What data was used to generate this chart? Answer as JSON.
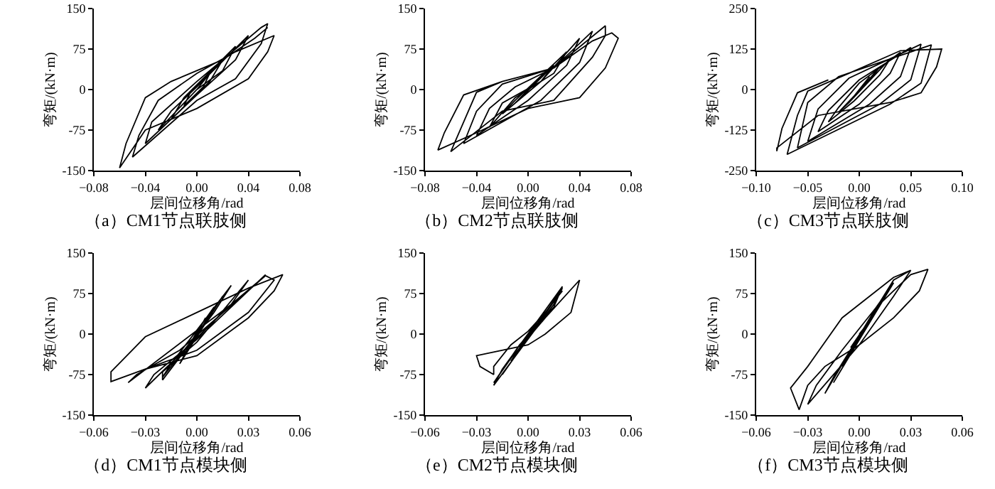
{
  "chart_data": [
    {
      "type": "line",
      "title": "（a）CM1节点联肢侧",
      "xlabel": "层间位移角/rad",
      "ylabel": "弯矩/(kN·m)",
      "color": "#000000",
      "xlim": [
        -0.08,
        0.08
      ],
      "ylim": [
        -150,
        150
      ],
      "xticks": [
        {
          "value": -0.08,
          "label": "−0.08"
        },
        {
          "value": -0.04,
          "label": "−0.04"
        },
        {
          "value": 0,
          "label": "0.00"
        },
        {
          "value": 0.04,
          "label": "0.04"
        },
        {
          "value": 0.08,
          "label": "0.08"
        }
      ],
      "yticks": [
        -150,
        -75,
        0,
        75,
        150
      ],
      "x": [
        0,
        0.01,
        0.005,
        -0.01,
        -0.005,
        0.02,
        0.01,
        -0.02,
        -0.01,
        0.03,
        0.02,
        0,
        -0.03,
        -0.02,
        0,
        0.04,
        0.03,
        0,
        -0.04,
        -0.035,
        0,
        0.05,
        0.055,
        0.05,
        0.03,
        0,
        -0.05,
        -0.045,
        -0.03,
        0,
        0.03,
        0.06,
        0.055,
        0.04,
        0,
        -0.04,
        -0.06,
        -0.055,
        -0.04,
        -0.02,
        0.02,
        0.045,
        0.055
      ],
      "values": [
        0,
        30,
        5,
        -30,
        -5,
        55,
        15,
        -55,
        -15,
        80,
        35,
        0,
        -75,
        -40,
        5,
        100,
        55,
        -10,
        -100,
        -60,
        15,
        115,
        122,
        85,
        20,
        -20,
        -125,
        -85,
        -20,
        30,
        70,
        100,
        70,
        20,
        -35,
        -75,
        -145,
        -100,
        -15,
        15,
        55,
        95,
        115
      ]
    },
    {
      "type": "line",
      "title": "（b）CM2节点联肢侧",
      "xlabel": "层间位移角/rad",
      "ylabel": "弯矩/(kN·m)",
      "color": "#000000",
      "xlim": [
        -0.08,
        0.08
      ],
      "ylim": [
        -150,
        150
      ],
      "xticks": [
        {
          "value": -0.08,
          "label": "−0.08"
        },
        {
          "value": -0.04,
          "label": "−0.04"
        },
        {
          "value": 0,
          "label": "0.00"
        },
        {
          "value": 0.04,
          "label": "0.04"
        },
        {
          "value": 0.08,
          "label": "0.08"
        }
      ],
      "yticks": [
        -150,
        -75,
        0,
        75,
        150
      ],
      "x": [
        0,
        0.01,
        -0.01,
        0.02,
        0.01,
        -0.02,
        -0.01,
        0.03,
        0.02,
        -0.01,
        -0.03,
        -0.02,
        0.01,
        0.04,
        0.03,
        0,
        -0.04,
        -0.03,
        -0.01,
        0.02,
        0.05,
        0.04,
        0.01,
        -0.05,
        -0.04,
        -0.02,
        0.02,
        0.06,
        0.06,
        0.05,
        0.02,
        -0.02,
        -0.06,
        -0.05,
        -0.04,
        -0.02,
        0.02,
        0.05,
        0.065,
        0.07,
        0.06,
        0.04,
        0,
        -0.04,
        -0.07,
        -0.065,
        -0.05,
        -0.02,
        0.02
      ],
      "values": [
        0,
        25,
        -25,
        45,
        15,
        -45,
        -20,
        70,
        30,
        -15,
        -70,
        -25,
        15,
        95,
        45,
        -20,
        -85,
        -35,
        5,
        40,
        108,
        50,
        -20,
        -100,
        -40,
        10,
        40,
        118,
        100,
        60,
        -20,
        -40,
        -115,
        -60,
        -5,
        15,
        40,
        90,
        105,
        95,
        40,
        -15,
        -35,
        -80,
        -112,
        -80,
        -10,
        15,
        40
      ]
    },
    {
      "type": "line",
      "title": "（c）CM3节点联肢侧",
      "xlabel": "层间位移角/rad",
      "ylabel": "弯矩/(kN·m)",
      "color": "#000000",
      "xlim": [
        -0.1,
        0.1
      ],
      "ylim": [
        -250,
        250
      ],
      "xticks": [
        {
          "value": -0.1,
          "label": "−0.10"
        },
        {
          "value": -0.05,
          "label": "−0.05"
        },
        {
          "value": 0,
          "label": "0.00"
        },
        {
          "value": 0.05,
          "label": "0.05"
        },
        {
          "value": 0.1,
          "label": "0.10"
        }
      ],
      "yticks": [
        -250,
        -125,
        0,
        125,
        250
      ],
      "x": [
        0,
        0.01,
        -0.01,
        0.02,
        0.01,
        -0.02,
        -0.01,
        0.03,
        0.02,
        -0.005,
        -0.03,
        -0.02,
        0,
        0.04,
        0.03,
        0,
        -0.04,
        -0.03,
        0,
        0.05,
        0.04,
        0.01,
        -0.05,
        -0.04,
        -0.01,
        0.06,
        0.05,
        0.02,
        -0.06,
        -0.05,
        -0.02,
        0.07,
        0.06,
        0.03,
        -0.07,
        -0.06,
        -0.05,
        -0.01,
        0.04,
        0.08,
        0.075,
        0.06,
        0.03,
        -0.04,
        -0.08,
        -0.08,
        -0.075,
        -0.06,
        -0.03
      ],
      "values": [
        0,
        40,
        -40,
        70,
        30,
        -70,
        -40,
        95,
        45,
        -35,
        -100,
        -55,
        20,
        115,
        50,
        -45,
        -130,
        -65,
        30,
        130,
        40,
        -45,
        -160,
        -60,
        35,
        140,
        30,
        -45,
        -180,
        -40,
        40,
        138,
        20,
        -45,
        -200,
        -80,
        -5,
        50,
        120,
        125,
        70,
        -10,
        -40,
        -80,
        -180,
        -190,
        -120,
        -10,
        30
      ]
    },
    {
      "type": "line",
      "title": "（d）CM1节点模块侧",
      "xlabel": "层间位移角/rad",
      "ylabel": "弯矩/(kN·m)",
      "color": "#000000",
      "xlim": [
        -0.06,
        0.06
      ],
      "ylim": [
        -150,
        150
      ],
      "xticks": [
        {
          "value": -0.06,
          "label": "−0.06"
        },
        {
          "value": -0.03,
          "label": "−0.03"
        },
        {
          "value": 0,
          "label": "0.00"
        },
        {
          "value": 0.03,
          "label": "0.03"
        },
        {
          "value": 0.06,
          "label": "0.06"
        }
      ],
      "yticks": [
        -150,
        -75,
        0,
        75,
        150
      ],
      "x": [
        0,
        0.005,
        -0.005,
        0.01,
        0,
        -0.01,
        -0.005,
        0.015,
        0.005,
        -0.02,
        -0.015,
        0.02,
        0.01,
        -0.02,
        -0.02,
        0,
        0.03,
        0.02,
        -0.03,
        -0.025,
        0,
        0.04,
        0.035,
        0.02,
        -0.04,
        -0.035,
        -0.01,
        0.04,
        0.045,
        0.03,
        0,
        -0.05,
        -0.05,
        -0.03,
        0,
        0.03,
        0.05,
        0.045,
        0.03,
        0,
        -0.03
      ],
      "values": [
        0,
        30,
        -30,
        50,
        5,
        -55,
        -30,
        70,
        20,
        -80,
        -55,
        90,
        40,
        -85,
        -70,
        -15,
        100,
        55,
        -100,
        -75,
        -10,
        110,
        95,
        55,
        -90,
        -75,
        -30,
        108,
        100,
        40,
        -30,
        -88,
        -70,
        -5,
        40,
        85,
        110,
        80,
        30,
        -40,
        -65
      ]
    },
    {
      "type": "line",
      "title": "（e）CM2节点模块侧",
      "xlabel": "层间位移角/rad",
      "ylabel": "弯矩/(kN·m)",
      "color": "#000000",
      "xlim": [
        -0.06,
        0.06
      ],
      "ylim": [
        -150,
        150
      ],
      "xticks": [
        {
          "value": -0.06,
          "label": "−0.06"
        },
        {
          "value": -0.03,
          "label": "−0.03"
        },
        {
          "value": 0,
          "label": "0.00"
        },
        {
          "value": 0.03,
          "label": "0.03"
        },
        {
          "value": 0.06,
          "label": "0.06"
        }
      ],
      "yticks": [
        -150,
        -75,
        0,
        75,
        150
      ],
      "x": [
        0,
        0.005,
        -0.005,
        0.01,
        -0.01,
        0.015,
        -0.015,
        0.02,
        0.015,
        -0.02,
        -0.015,
        0.02,
        0.015,
        -0.005,
        -0.02,
        -0.01,
        0.01,
        0.03,
        0.025,
        0.01,
        0,
        -0.03,
        -0.028,
        -0.02,
        -0.02,
        -0.01,
        0,
        0.01,
        0.02
      ],
      "values": [
        0,
        20,
        -25,
        40,
        -50,
        60,
        -75,
        85,
        55,
        -95,
        -65,
        88,
        50,
        -20,
        -90,
        -45,
        30,
        100,
        40,
        0,
        -20,
        -40,
        -60,
        -75,
        -60,
        -20,
        5,
        40,
        80
      ]
    },
    {
      "type": "line",
      "title": "（f）CM3节点模块侧",
      "xlabel": "层间位移角/rad",
      "ylabel": "弯矩/(kN·m)",
      "color": "#000000",
      "xlim": [
        -0.06,
        0.06
      ],
      "ylim": [
        -150,
        150
      ],
      "xticks": [
        {
          "value": -0.06,
          "label": "−0.06"
        },
        {
          "value": -0.03,
          "label": "−0.03"
        },
        {
          "value": 0,
          "label": "0.00"
        },
        {
          "value": 0.03,
          "label": "0.03"
        },
        {
          "value": 0.06,
          "label": "0.06"
        }
      ],
      "yticks": [
        -150,
        -75,
        0,
        75,
        150
      ],
      "x": [
        0,
        0.005,
        -0.005,
        0.01,
        -0.01,
        0.015,
        -0.015,
        0.02,
        0.01,
        -0.02,
        -0.015,
        0.02,
        0.03,
        0.02,
        0,
        -0.03,
        -0.025,
        -0.01,
        0.01,
        0.03,
        0.04,
        0.035,
        0.02,
        0,
        -0.02,
        -0.03,
        -0.035,
        -0.04,
        -0.03,
        -0.01,
        0.01,
        0.02,
        0.03
      ],
      "values": [
        0,
        20,
        -25,
        45,
        -60,
        70,
        -90,
        95,
        50,
        -110,
        -80,
        100,
        118,
        70,
        -20,
        -130,
        -95,
        -30,
        50,
        110,
        120,
        80,
        30,
        -20,
        -60,
        -95,
        -140,
        -100,
        -60,
        30,
        80,
        105,
        118
      ]
    }
  ]
}
